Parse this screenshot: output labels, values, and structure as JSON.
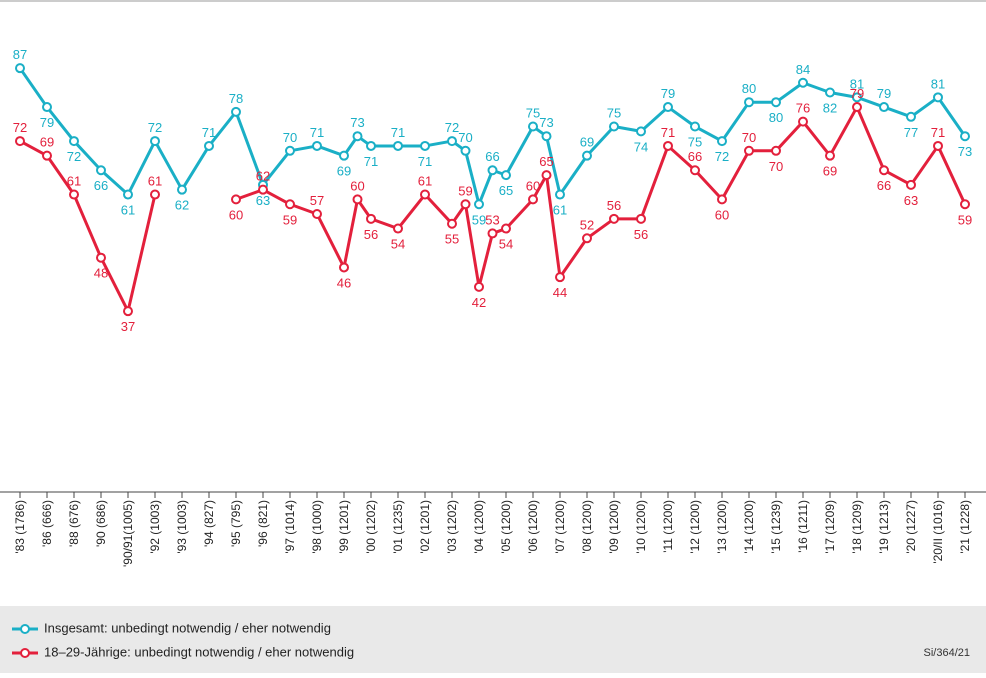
{
  "chart_data": {
    "type": "line",
    "categories": [
      "'83 (1786)",
      "'86 (666)",
      "'88 (676)",
      "'90 (686)",
      "'90/91(1005)",
      "'92 (1003)",
      "'93 (1003)",
      "'94 (827)",
      "'95 (795)",
      "'96 (821)",
      "'97 (1014)",
      "'98 (1000)",
      "'99 (1201)",
      null,
      "'00 (1202)",
      "'01 (1235)",
      "'02 (1201)",
      "'03 (1202)",
      null,
      "'04 (1200)",
      null,
      "'05 (1200)",
      "'06 (1200)",
      null,
      "'07 (1200)",
      "'08 (1200)",
      "'09 (1200)",
      "'10 (1200)",
      "'11 (1200)",
      "'12 (1200)",
      "'13 (1200)",
      "'14 (1200)",
      "'15 (1239)",
      "'16 (1211)",
      "'17 (1209)",
      "'18 (1209)",
      "'19 (1213)",
      "'20 (1227)",
      "'20/II (1016)",
      "'21 (1228)"
    ],
    "series": [
      {
        "name": "Insgesamt: unbedingt notwendig / eher notwendig",
        "color": "#1aafc6",
        "values": [
          87,
          79,
          72,
          66,
          61,
          72,
          62,
          71,
          78,
          63,
          70,
          71,
          69,
          73,
          71,
          71,
          71,
          72,
          70,
          59,
          66,
          65,
          75,
          73,
          61,
          69,
          75,
          74,
          79,
          75,
          72,
          80,
          80,
          84,
          82,
          81,
          79,
          77,
          81,
          73
        ]
      },
      {
        "name": "18–29-Jährige: unbedingt notwendig / eher notwendig",
        "color": "#e3203c",
        "values": [
          72,
          69,
          61,
          48,
          37,
          61,
          null,
          null,
          60,
          62,
          59,
          57,
          46,
          60,
          56,
          54,
          61,
          55,
          59,
          42,
          53,
          54,
          60,
          65,
          44,
          52,
          56,
          56,
          71,
          66,
          60,
          70,
          70,
          76,
          69,
          79,
          66,
          63,
          71,
          59
        ]
      }
    ],
    "ylim": [
      0,
      100
    ],
    "note": "Si/364/21"
  }
}
